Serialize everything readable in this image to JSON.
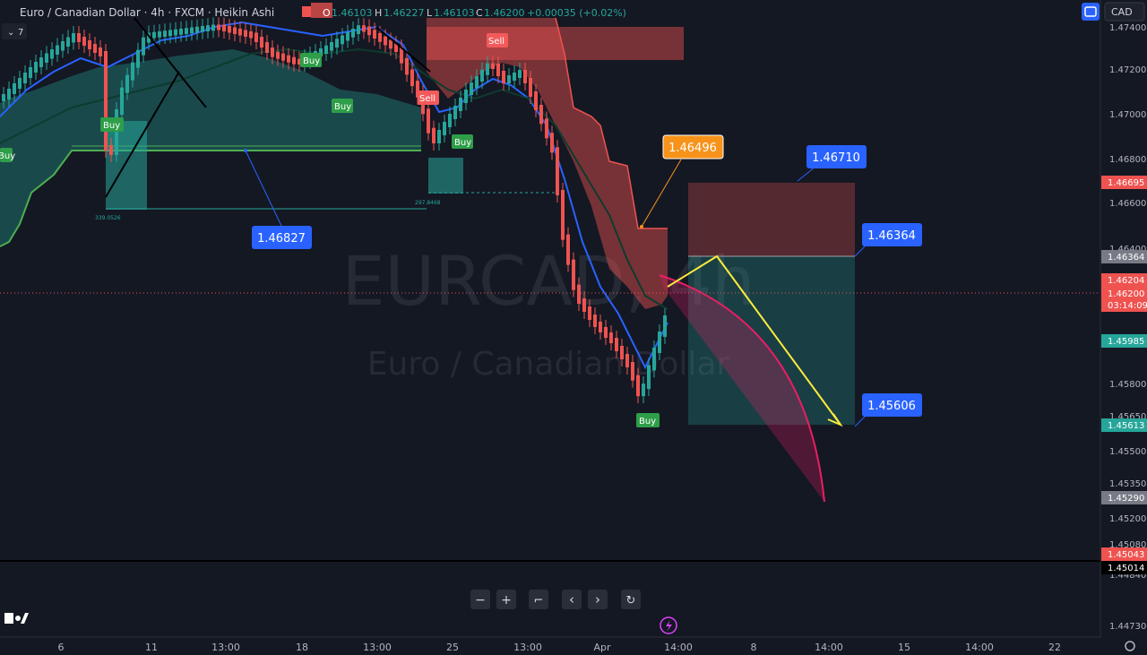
{
  "header": {
    "symbol_title": "Euro / Canadian Dollar · 4h · FXCM · Heikin Ashi",
    "ohlc": {
      "o_label": "O",
      "o_value": "1.46103",
      "h_label": "H",
      "h_value": "1.46227",
      "l_label": "L",
      "l_value": "1.46103",
      "c_label": "C",
      "c_value": "1.46200",
      "change": "+0.00035 (+0.02%)"
    },
    "indicator_count": "7",
    "currency_button": "CAD"
  },
  "watermark": {
    "symbol": "EURCAD, 4h",
    "name": "Euro / Canadian Dollar"
  },
  "colors": {
    "background": "#141823",
    "bull": "#26a69a",
    "bear": "#ef5350",
    "blue_label": "#2962ff",
    "orange_label": "#f7931a",
    "buy_badge": "#2e9e48",
    "sell_badge": "#f25a5a",
    "projection": "#ffeb3b",
    "arc": "#e91e63"
  },
  "chart_data": {
    "type": "candlestick",
    "price_axis_ticks": [
      "1.47400",
      "1.47200",
      "1.47000",
      "1.46800",
      "1.46600",
      "1.46400",
      "1.45800",
      "1.45650",
      "1.45500",
      "1.45350",
      "1.45200",
      "1.45080",
      "1.44840",
      "1.44730"
    ],
    "time_axis_ticks": [
      "6",
      "11",
      "13:00",
      "18",
      "13:00",
      "25",
      "13:00",
      "Apr",
      "14:00",
      "8",
      "14:00",
      "15",
      "14:00",
      "22"
    ],
    "price_tags": [
      {
        "value": "1.46695",
        "style": "red"
      },
      {
        "value": "1.46364",
        "style": "gray"
      },
      {
        "value": "1.46204",
        "style": "red"
      },
      {
        "value": "1.46200",
        "style": "red"
      },
      {
        "value": "03:14:09",
        "style": "red"
      },
      {
        "value": "1.45985",
        "style": "green"
      },
      {
        "value": "1.45613",
        "style": "green"
      },
      {
        "value": "1.45290",
        "style": "gray"
      },
      {
        "value": "1.45043",
        "style": "red"
      },
      {
        "value": "1.45014",
        "style": "white"
      }
    ],
    "callouts": [
      {
        "text": "1.46827",
        "style": "blue"
      },
      {
        "text": "1.46496",
        "style": "orange"
      },
      {
        "text": "1.46710",
        "style": "blue"
      },
      {
        "text": "1.46364",
        "style": "blue"
      },
      {
        "text": "1.45606",
        "style": "blue"
      }
    ],
    "signals": [
      {
        "text": "Buy",
        "kind": "buy"
      },
      {
        "text": "Buy",
        "kind": "buy"
      },
      {
        "text": "Buy",
        "kind": "buy"
      },
      {
        "text": "Buy",
        "kind": "buy"
      },
      {
        "text": "Buy",
        "kind": "buy"
      },
      {
        "text": "Sell",
        "kind": "sell"
      },
      {
        "text": "Sell",
        "kind": "sell"
      },
      {
        "text": "Buy",
        "kind": "buy"
      }
    ],
    "small_labels": [
      "339.0526",
      "297.8468"
    ],
    "ylim": [
      1.4468,
      1.475
    ]
  },
  "nav": {
    "buttons": [
      {
        "name": "zoom-out-button",
        "glyph": "−"
      },
      {
        "name": "zoom-in-button",
        "glyph": "+"
      },
      {
        "name": "reset-scale-button",
        "glyph": "⌐"
      },
      {
        "name": "scroll-left-button",
        "glyph": "‹"
      },
      {
        "name": "scroll-right-button",
        "glyph": "›"
      },
      {
        "name": "refresh-button",
        "glyph": "↻"
      }
    ]
  }
}
